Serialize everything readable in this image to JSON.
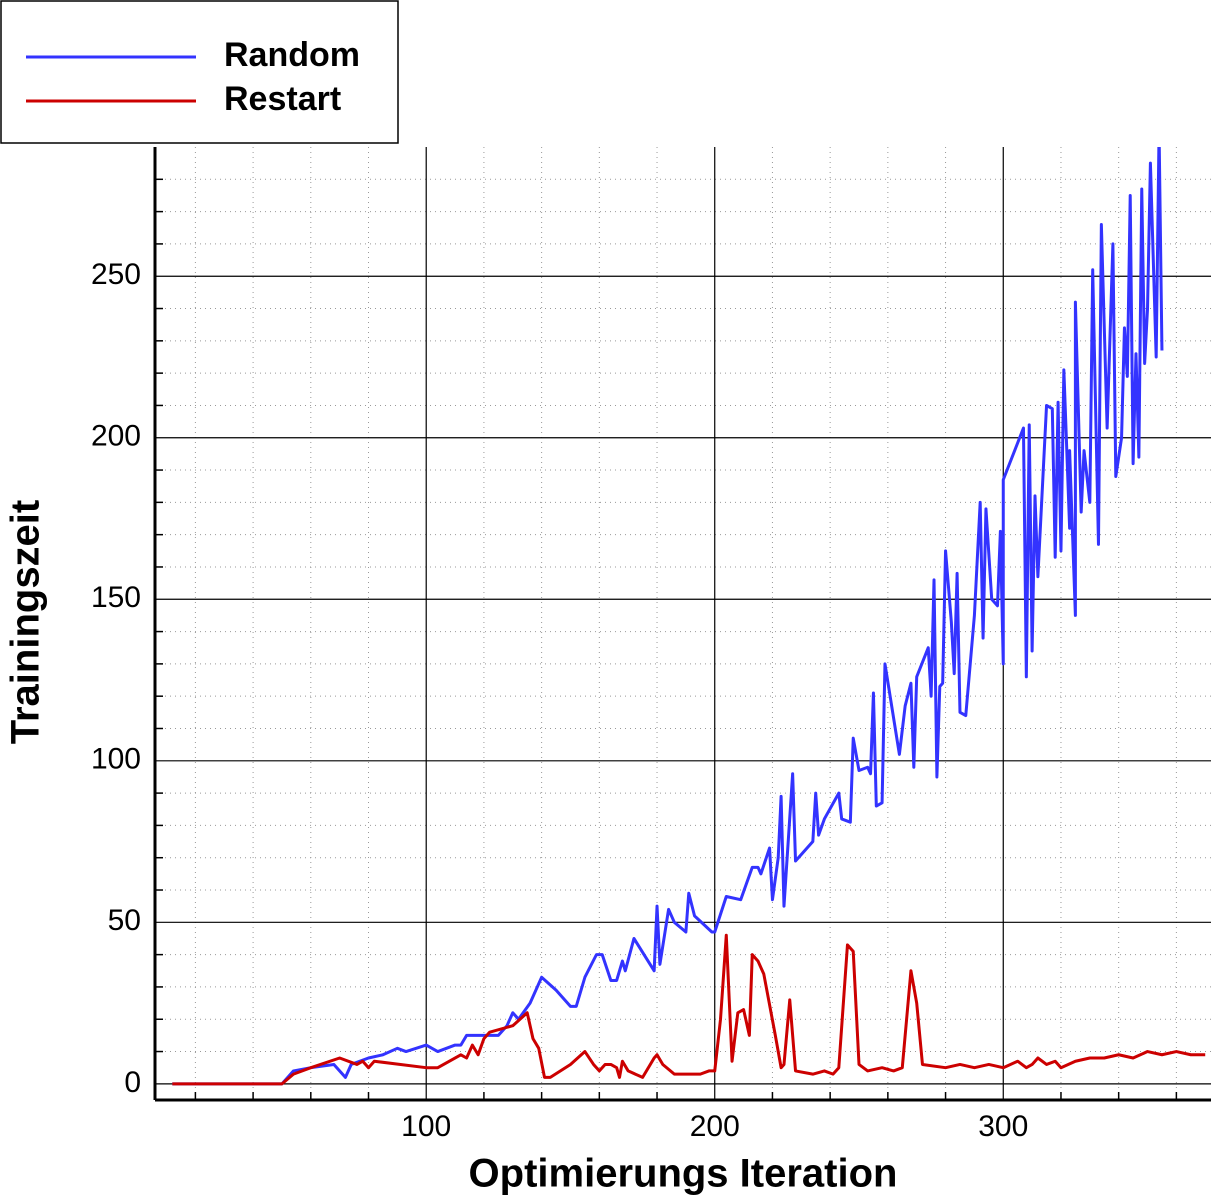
{
  "chart_data": {
    "type": "line",
    "xlabel": "Optimierungs Iteration",
    "ylabel": "Trainingszeit",
    "xlim": [
      6,
      372
    ],
    "ylim": [
      -5,
      290
    ],
    "xticks": [
      100,
      200,
      300
    ],
    "yticks": [
      0,
      50,
      100,
      150,
      200,
      250
    ],
    "xminorticks": [
      20,
      40,
      60,
      80,
      120,
      140,
      160,
      180,
      220,
      240,
      260,
      280,
      320,
      340,
      360
    ],
    "yminorticks": [
      10,
      20,
      30,
      40,
      60,
      70,
      80,
      90,
      110,
      120,
      130,
      140,
      160,
      170,
      180,
      190,
      210,
      220,
      230,
      240,
      260,
      270,
      280
    ],
    "grid": true,
    "legend": "upper left",
    "series": [
      {
        "name": "Random",
        "color": "#3333ff",
        "x": [
          12,
          50,
          54,
          60,
          68,
          72,
          74,
          80,
          85,
          90,
          93,
          100,
          104,
          110,
          112,
          114,
          125,
          128,
          130,
          132,
          136,
          140,
          145,
          150,
          152,
          155,
          159,
          161,
          164,
          166,
          168,
          169,
          172,
          179,
          180,
          181,
          184,
          186,
          190,
          191,
          193,
          199,
          200,
          204,
          209,
          213,
          215,
          216,
          219,
          220,
          222,
          223,
          224,
          227,
          228,
          234,
          235,
          236,
          238,
          243,
          244,
          247,
          248,
          250,
          253,
          254,
          255,
          256,
          258,
          259,
          264,
          266,
          268,
          269,
          270,
          274,
          275,
          276,
          277,
          278,
          279,
          280,
          282,
          283,
          284,
          285,
          287,
          290,
          292,
          293,
          294,
          296,
          298,
          299,
          300,
          300,
          307,
          308,
          309,
          310,
          311,
          312,
          315,
          317,
          318,
          319,
          320,
          321,
          323,
          323,
          325,
          325,
          327,
          328,
          330,
          331,
          333,
          334,
          336,
          338,
          339,
          341,
          342,
          343,
          344,
          345,
          346,
          347,
          348,
          349,
          350,
          351,
          353,
          354,
          355
        ],
        "values": [
          0,
          0,
          4,
          5,
          6,
          2,
          6,
          8,
          9,
          11,
          10,
          12,
          10,
          12,
          12,
          15,
          15,
          18,
          22,
          20,
          25,
          33,
          29,
          24,
          24,
          33,
          40,
          40,
          32,
          32,
          38,
          35,
          45,
          35,
          55,
          37,
          54,
          50,
          47,
          59,
          52,
          47,
          47,
          58,
          57,
          67,
          67,
          65,
          73,
          57,
          70,
          89,
          55,
          96,
          69,
          75,
          90,
          77,
          82,
          90,
          82,
          81,
          107,
          97,
          98,
          96,
          121,
          86,
          87,
          130,
          102,
          117,
          124,
          98,
          126,
          135,
          120,
          156,
          95,
          123,
          124,
          165,
          143,
          127,
          158,
          115,
          114,
          145,
          180,
          138,
          178,
          150,
          148,
          171,
          130,
          187,
          203,
          126,
          204,
          134,
          182,
          157,
          210,
          209,
          163,
          211,
          165,
          221,
          172,
          196,
          145,
          242,
          177,
          196,
          180,
          252,
          167,
          266,
          203,
          260,
          188,
          200,
          234,
          219,
          275,
          192,
          226,
          194,
          277,
          223,
          240,
          285,
          225,
          295,
          227
        ]
      },
      {
        "name": "Restart",
        "color": "#cc0000",
        "x": [
          12,
          50,
          54,
          60,
          70,
          76,
          78,
          80,
          82,
          100,
          104,
          112,
          114,
          116,
          118,
          120,
          122,
          130,
          135,
          137,
          139,
          141,
          143,
          150,
          155,
          158,
          160,
          162,
          164,
          166,
          167,
          168,
          170,
          175,
          179,
          180,
          182,
          186,
          195,
          198,
          200,
          202,
          204,
          206,
          208,
          210,
          212,
          213,
          215,
          217,
          221,
          223,
          224,
          226,
          228,
          234,
          238,
          241,
          243,
          246,
          248,
          250,
          253,
          258,
          262,
          265,
          268,
          270,
          272,
          280,
          285,
          290,
          295,
          300,
          305,
          308,
          310,
          312,
          315,
          318,
          320,
          325,
          330,
          335,
          340,
          345,
          350,
          355,
          360,
          365,
          370
        ],
        "values": [
          0,
          0,
          3,
          5,
          8,
          6,
          7,
          5,
          7,
          5,
          5,
          9,
          8,
          12,
          9,
          14,
          16,
          18,
          22,
          14,
          11,
          2,
          2,
          6,
          10,
          6,
          4,
          6,
          6,
          5,
          2,
          7,
          4,
          2,
          8,
          9,
          6,
          3,
          3,
          4,
          4,
          20,
          46,
          7,
          22,
          23,
          15,
          40,
          38,
          34,
          15,
          5,
          6,
          26,
          4,
          3,
          4,
          3,
          5,
          43,
          41,
          6,
          4,
          5,
          4,
          5,
          35,
          25,
          6,
          5,
          6,
          5,
          6,
          5,
          7,
          5,
          6,
          8,
          6,
          7,
          5,
          7,
          8,
          8,
          9,
          8,
          10,
          9,
          10,
          9,
          9
        ]
      }
    ]
  }
}
